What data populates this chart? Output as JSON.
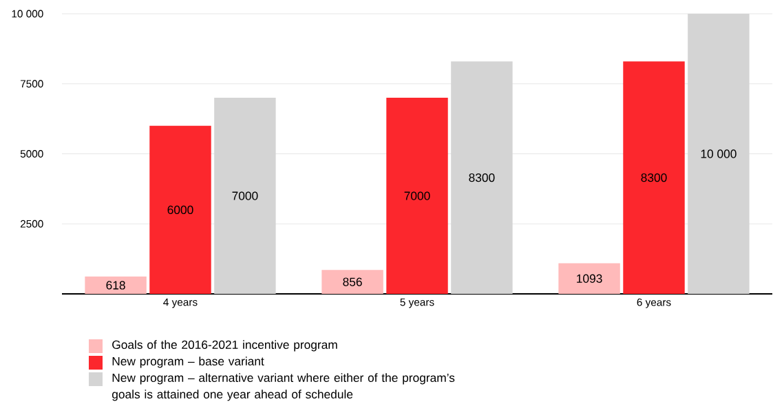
{
  "chart_data": {
    "type": "bar",
    "categories": [
      "4 years",
      "5 years",
      "6 years"
    ],
    "series": [
      {
        "name": "Goals of the 2016-2021 incentive program",
        "color": "#ffbaba",
        "values": [
          618,
          856,
          1093
        ],
        "value_labels": [
          "618",
          "856",
          "1093"
        ]
      },
      {
        "name": "New program – base variant",
        "color": "#fc272d",
        "values": [
          6000,
          7000,
          8300
        ],
        "value_labels": [
          "6000",
          "7000",
          "8300"
        ]
      },
      {
        "name": "New program – alternative variant where either of the program’s goals is attained one year ahead of schedule",
        "color": "#d4d4d4",
        "values": [
          7000,
          8300,
          10000
        ],
        "value_labels": [
          "7000",
          "8300",
          "10 000"
        ]
      }
    ],
    "ylim": [
      0,
      10000
    ],
    "yticks": [
      2500,
      5000,
      7500,
      {
        "value": 10000,
        "label": "10 000"
      }
    ],
    "grid": "y",
    "legend": "bottom"
  }
}
